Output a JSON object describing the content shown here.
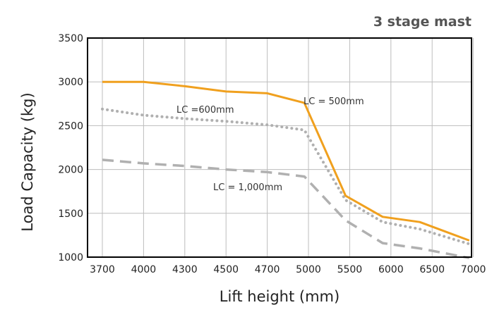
{
  "chart_data": {
    "type": "line",
    "title": "3 stage mast",
    "xlabel": "Lift height (mm)",
    "ylabel": "Load Capacity (kg)",
    "categories": [
      "3700",
      "4000",
      "4300",
      "4500",
      "4700",
      "5000",
      "5500",
      "6000",
      "6500",
      "7000"
    ],
    "ylim": [
      1000,
      3500
    ],
    "yticks": [
      1000,
      1500,
      2000,
      2500,
      3000,
      3500
    ],
    "grid": true,
    "series": [
      {
        "name": "LC = 500mm",
        "style": "solid",
        "color": "#f0a01e",
        "points": [
          [
            0,
            3000
          ],
          [
            1,
            3000
          ],
          [
            2,
            2950
          ],
          [
            3,
            2890
          ],
          [
            4,
            2870
          ],
          [
            4.9,
            2760
          ],
          [
            5.9,
            1700
          ],
          [
            6.8,
            1460
          ],
          [
            7.7,
            1400
          ],
          [
            8.9,
            1190
          ]
        ]
      },
      {
        "name": "LC =600mm",
        "style": "dotted",
        "color": "#b0b0b0",
        "points": [
          [
            0,
            2690
          ],
          [
            1,
            2620
          ],
          [
            2,
            2580
          ],
          [
            3,
            2550
          ],
          [
            4,
            2510
          ],
          [
            4.9,
            2450
          ],
          [
            5.9,
            1650
          ],
          [
            6.8,
            1400
          ],
          [
            7.7,
            1320
          ],
          [
            8.9,
            1150
          ]
        ]
      },
      {
        "name": "LC = 1,000mm",
        "style": "dashed",
        "color": "#b0b0b0",
        "points": [
          [
            0,
            2110
          ],
          [
            1,
            2070
          ],
          [
            2,
            2040
          ],
          [
            3,
            2000
          ],
          [
            4,
            1970
          ],
          [
            4.9,
            1920
          ],
          [
            5.9,
            1420
          ],
          [
            6.8,
            1160
          ],
          [
            7.7,
            1100
          ],
          [
            8.9,
            990
          ]
        ]
      }
    ],
    "annotations": [
      "LC = 500mm",
      "LC =600mm",
      "LC = 1,000mm"
    ]
  }
}
